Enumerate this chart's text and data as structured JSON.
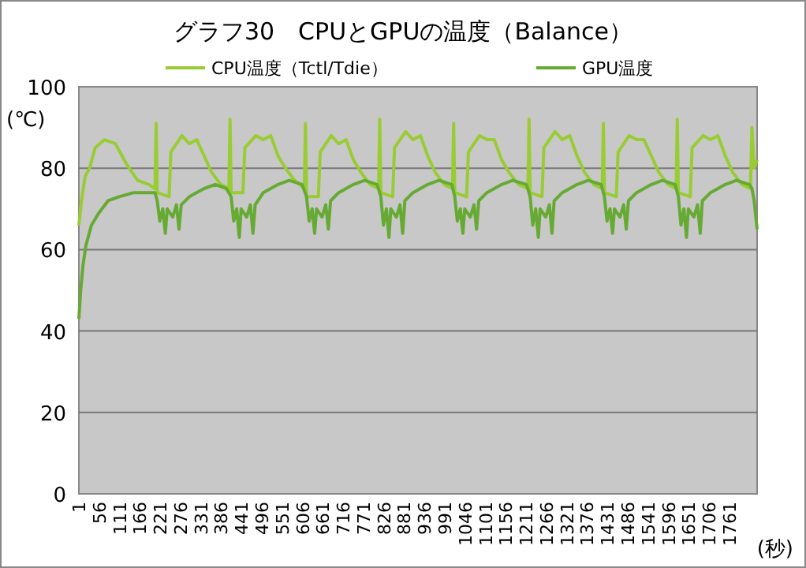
{
  "chart_data": {
    "type": "line",
    "title": "グラフ30　CPUとGPUの温度（Balance）",
    "ylabel": "(℃)",
    "xlabel": "(秒)",
    "xlim": [
      1,
      1836
    ],
    "ylim": [
      0,
      100
    ],
    "xticks": [
      1,
      56,
      111,
      166,
      221,
      276,
      331,
      386,
      441,
      496,
      551,
      606,
      661,
      716,
      771,
      826,
      881,
      936,
      991,
      1046,
      1101,
      1156,
      1211,
      1266,
      1321,
      1376,
      1431,
      1486,
      1541,
      1596,
      1651,
      1706,
      1761
    ],
    "yticks": [
      0,
      20,
      40,
      60,
      80,
      100
    ],
    "grid": "y",
    "legend": "top",
    "marker": "none",
    "line_style": "solid",
    "series": [
      {
        "name": "CPU温度（Tctl/Tdie）",
        "color": "#99cc33",
        "x": [
          1,
          8,
          18,
          30,
          45,
          70,
          100,
          130,
          160,
          190,
          207,
          210,
          213,
          245,
          250,
          280,
          300,
          320,
          340,
          360,
          385,
          407,
          410,
          413,
          445,
          450,
          480,
          500,
          520,
          540,
          560,
          585,
          611,
          614,
          617,
          649,
          654,
          684,
          704,
          724,
          744,
          764,
          789,
          812,
          815,
          818,
          850,
          855,
          885,
          905,
          925,
          945,
          965,
          990,
          1012,
          1015,
          1018,
          1050,
          1055,
          1085,
          1105,
          1125,
          1145,
          1165,
          1190,
          1216,
          1219,
          1222,
          1254,
          1259,
          1289,
          1309,
          1329,
          1349,
          1369,
          1394,
          1417,
          1420,
          1423,
          1455,
          1460,
          1490,
          1510,
          1530,
          1550,
          1570,
          1595,
          1617,
          1620,
          1623,
          1655,
          1660,
          1690,
          1710,
          1730,
          1750,
          1770,
          1795,
          1818,
          1822,
          1828,
          1836
        ],
        "values": [
          66,
          72,
          78,
          80,
          85,
          87,
          86,
          81,
          77,
          76,
          75,
          91,
          74,
          73,
          84,
          88,
          86,
          87,
          83,
          79,
          76,
          75,
          92,
          74,
          74,
          85,
          88,
          87,
          88,
          83,
          80,
          77,
          75,
          91,
          73,
          73,
          84,
          88,
          86,
          87,
          82,
          79,
          76,
          75,
          92,
          74,
          73,
          85,
          89,
          87,
          88,
          83,
          79,
          76,
          75,
          91,
          74,
          73,
          84,
          88,
          87,
          87,
          82,
          79,
          76,
          75,
          92,
          74,
          73,
          85,
          89,
          87,
          88,
          83,
          79,
          76,
          75,
          91,
          74,
          73,
          84,
          88,
          87,
          87,
          83,
          79,
          76,
          75,
          92,
          74,
          73,
          85,
          88,
          87,
          88,
          83,
          79,
          76,
          75,
          90,
          80,
          82
        ]
      },
      {
        "name": "GPU温度",
        "color": "#66aa33",
        "x": [
          1,
          6,
          12,
          20,
          35,
          55,
          80,
          110,
          150,
          190,
          207,
          213,
          220,
          228,
          235,
          240,
          255,
          265,
          272,
          278,
          300,
          340,
          370,
          400,
          413,
          420,
          428,
          435,
          440,
          455,
          465,
          472,
          478,
          500,
          540,
          570,
          605,
          617,
          624,
          632,
          639,
          644,
          659,
          669,
          676,
          682,
          704,
          744,
          774,
          808,
          818,
          825,
          833,
          840,
          845,
          860,
          870,
          877,
          883,
          905,
          945,
          975,
          1010,
          1018,
          1025,
          1033,
          1040,
          1045,
          1060,
          1070,
          1077,
          1083,
          1105,
          1145,
          1175,
          1212,
          1222,
          1229,
          1237,
          1244,
          1249,
          1264,
          1274,
          1281,
          1287,
          1309,
          1349,
          1379,
          1414,
          1423,
          1430,
          1438,
          1445,
          1450,
          1465,
          1475,
          1482,
          1488,
          1510,
          1550,
          1580,
          1614,
          1623,
          1630,
          1638,
          1645,
          1650,
          1665,
          1675,
          1682,
          1688,
          1710,
          1750,
          1780,
          1815,
          1822,
          1828,
          1836
        ],
        "values": [
          43,
          50,
          56,
          61,
          66,
          69,
          72,
          73,
          74,
          74,
          74,
          72,
          67,
          70,
          64,
          70,
          68,
          71,
          65,
          71,
          73,
          75,
          76,
          75,
          73,
          67,
          70,
          63,
          70,
          68,
          71,
          64,
          71,
          74,
          76,
          77,
          76,
          73,
          67,
          70,
          64,
          70,
          68,
          71,
          65,
          72,
          74,
          76,
          77,
          76,
          73,
          66,
          70,
          63,
          70,
          68,
          71,
          64,
          72,
          74,
          76,
          77,
          76,
          73,
          67,
          70,
          64,
          70,
          68,
          71,
          65,
          72,
          74,
          76,
          77,
          76,
          73,
          66,
          70,
          63,
          70,
          68,
          71,
          64,
          72,
          74,
          76,
          77,
          76,
          73,
          67,
          70,
          64,
          70,
          68,
          71,
          65,
          72,
          74,
          76,
          77,
          76,
          73,
          66,
          70,
          63,
          70,
          68,
          71,
          64,
          72,
          74,
          76,
          77,
          76,
          75,
          72,
          65
        ]
      }
    ]
  }
}
